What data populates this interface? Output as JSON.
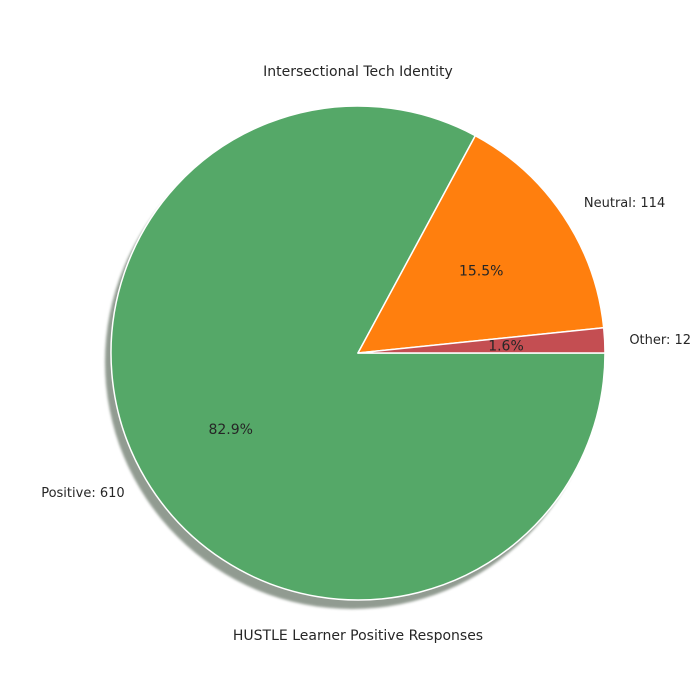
{
  "chart_data": {
    "type": "pie",
    "title": "Intersectional Tech Identity",
    "xlabel": "HUSTLE Learner Positive Responses",
    "slices": [
      {
        "label": "Positive: 610",
        "value": 610,
        "percent_label": "82.9%",
        "color": "#55a868"
      },
      {
        "label": "Neutral: 114",
        "value": 114,
        "percent_label": "15.5%",
        "color": "#ff7f0e"
      },
      {
        "label": "Other: 12",
        "value": 12,
        "percent_label": "1.6%",
        "color": "#c44e52"
      }
    ],
    "shadow": true,
    "start_angle_deg": 0,
    "direction": "clockwise"
  }
}
